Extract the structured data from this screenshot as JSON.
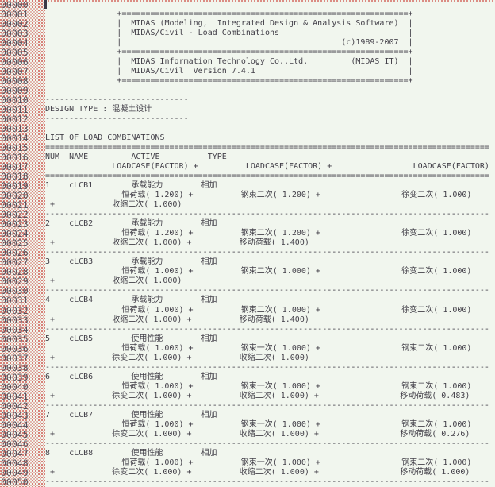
{
  "window": {
    "kind": "text-output-viewer",
    "cursor_line": "00000"
  },
  "colors": {
    "background": "#f1f6ee",
    "text": "#434049",
    "gutter_dots": "#ce4f47",
    "gutter_numbers": "#55515c",
    "caret": "#3a3947"
  },
  "header_box": {
    "product": "MIDAS (Modeling,  Integrated Design & Analysis Software)",
    "module": "MIDAS/Civil - Load Combinations",
    "copyright": "(c)1989-2007",
    "company": "MIDAS Information Technology Co.,Ltd.",
    "company_short": "(MIDAS IT)",
    "version": "MIDAS/Civil  Version 7.4.1"
  },
  "design_type_label": "DESIGN TYPE : 混凝土设计",
  "list_title": "LIST OF LOAD COMBINATIONS",
  "load_combinations_table": {
    "headers": [
      "NUM",
      "NAME",
      "ACTIVE",
      "TYPE",
      "LOADCASE(FACTOR)",
      "LOADCASE(FACTOR)",
      "LOADCASE(FACTOR)"
    ],
    "rows": [
      {
        "num": "1",
        "name": "cLCB1",
        "active": "承载能力",
        "type": "相加",
        "loadcases": [
          "恒荷载( 1.200)",
          "钢束二次( 1.200)",
          "徐变二次( 1.000)",
          "收缩二次( 1.000)"
        ]
      },
      {
        "num": "2",
        "name": "cLCB2",
        "active": "承载能力",
        "type": "相加",
        "loadcases": [
          "恒荷载( 1.200)",
          "钢束二次( 1.200)",
          "徐变二次( 1.000)",
          "收缩二次( 1.000)",
          "移动荷载( 1.400)"
        ]
      },
      {
        "num": "3",
        "name": "cLCB3",
        "active": "承载能力",
        "type": "相加",
        "loadcases": [
          "恒荷载( 1.000)",
          "钢束二次( 1.000)",
          "徐变二次( 1.000)",
          "收缩二次( 1.000)"
        ]
      },
      {
        "num": "4",
        "name": "cLCB4",
        "active": "承载能力",
        "type": "相加",
        "loadcases": [
          "恒荷载( 1.000)",
          "钢束二次( 1.000)",
          "徐变二次( 1.000)",
          "收缩二次( 1.000)",
          "移动荷载( 1.400)"
        ]
      },
      {
        "num": "5",
        "name": "cLCB5",
        "active": "使用性能",
        "type": "相加",
        "loadcases": [
          "恒荷载( 1.000)",
          "钢束一次( 1.000)",
          "钢束二次( 1.000)",
          "徐变二次( 1.000)",
          "收缩二次( 1.000)"
        ]
      },
      {
        "num": "6",
        "name": "cLCB6",
        "active": "使用性能",
        "type": "相加",
        "loadcases": [
          "恒荷载( 1.000)",
          "钢束一次( 1.000)",
          "钢束二次( 1.000)",
          "徐变二次( 1.000)",
          "收缩二次( 1.000)",
          "移动荷载( 0.483)"
        ]
      },
      {
        "num": "7",
        "name": "cLCB7",
        "active": "使用性能",
        "type": "相加",
        "loadcases": [
          "恒荷载( 1.000)",
          "钢束一次( 1.000)",
          "钢束二次( 1.000)",
          "徐变二次( 1.000)",
          "收缩二次( 1.000)",
          "移动荷载( 0.276)"
        ]
      },
      {
        "num": "8",
        "name": "cLCB8",
        "active": "使用性能",
        "type": "相加",
        "loadcases": [
          "恒荷载( 1.000)",
          "钢束一次( 1.000)",
          "钢束二次( 1.000)",
          "徐变二次( 1.000)",
          "收缩二次( 1.000)",
          "移动荷载( 1.000)"
        ]
      }
    ]
  },
  "gutter": {
    "numbers": [
      "00000",
      "00001",
      "00002",
      "00003",
      "00004",
      "00005",
      "00006",
      "00007",
      "00008",
      "00009",
      "00010",
      "00011",
      "00012",
      "00013",
      "00014",
      "00015",
      "00016",
      "00017",
      "00018",
      "00019",
      "00020",
      "00021",
      "00022",
      "00023",
      "00024",
      "00025",
      "00026",
      "00027",
      "00028",
      "00029",
      "00030",
      "00031",
      "00032",
      "00033",
      "00034",
      "00035",
      "00036",
      "00037",
      "00038",
      "00039",
      "00040",
      "00041",
      "00042",
      "00043",
      "00044",
      "00045",
      "00046",
      "00047",
      "00048",
      "00049",
      "00050"
    ]
  },
  "document": {
    "lines": [
      "",
      "               +============================================================+",
      "               |  MIDAS (Modeling,  Integrated Design & Analysis Software)  |",
      "               |  MIDAS/Civil - Load Combinations                           |",
      "               |                                              (c)1989-2007  |",
      "               +============================================================+",
      "               |  MIDAS Information Technology Co.,Ltd.         (MIDAS IT)  |",
      "               |  MIDAS/Civil  Version 7.4.1                                |",
      "               +============================================================+",
      "",
      "------------------------------",
      "DESIGN TYPE : 混凝土设计",
      "------------------------------",
      "",
      "LIST OF LOAD COMBINATIONS",
      "=============================================================================================",
      "NUM  NAME         ACTIVE          TYPE",
      "              LOADCASE(FACTOR) +          LOADCASE(FACTOR) +                 LOADCASE(FACTOR)",
      "=============================================================================================",
      "1    cLCB1        承载能力        相加",
      "                恒荷载( 1.200) +          钢束二次( 1.200) +                 徐变二次( 1.000)",
      " +            收缩二次( 1.000)",
      "---------------------------------------------------------------------------------------------",
      "2    cLCB2        承载能力        相加",
      "                恒荷载( 1.200) +          钢束二次( 1.200) +                 徐变二次( 1.000)",
      " +            收缩二次( 1.000) +          移动荷载( 1.400)",
      "---------------------------------------------------------------------------------------------",
      "3    cLCB3        承载能力        相加",
      "                恒荷载( 1.000) +          钢束二次( 1.000) +                 徐变二次( 1.000)",
      " +            收缩二次( 1.000)",
      "---------------------------------------------------------------------------------------------",
      "4    cLCB4        承载能力        相加",
      "                恒荷载( 1.000) +          钢束二次( 1.000) +                 徐变二次( 1.000)",
      " +            收缩二次( 1.000) +          移动荷载( 1.400)",
      "---------------------------------------------------------------------------------------------",
      "5    cLCB5        使用性能        相加",
      "                恒荷载( 1.000) +          钢束一次( 1.000) +                 钢束二次( 1.000)",
      " +            徐变二次( 1.000) +          收缩二次( 1.000)",
      "---------------------------------------------------------------------------------------------",
      "6    cLCB6        使用性能        相加",
      "                恒荷载( 1.000) +          钢束一次( 1.000) +                 钢束二次( 1.000)",
      " +            徐变二次( 1.000) +          收缩二次( 1.000) +                 移动荷载( 0.483)",
      "---------------------------------------------------------------------------------------------",
      "7    cLCB7        使用性能        相加",
      "                恒荷载( 1.000) +          钢束一次( 1.000) +                 钢束二次( 1.000)",
      " +            徐变二次( 1.000) +          收缩二次( 1.000) +                 移动荷载( 0.276)",
      "---------------------------------------------------------------------------------------------",
      "8    cLCB8        使用性能        相加",
      "                恒荷载( 1.000) +          钢束一次( 1.000) +                 钢束二次( 1.000)",
      " +            徐变二次( 1.000) +          收缩二次( 1.000) +                 移动荷载( 1.000)",
      "---------------------------------------------------------------------------------------------"
    ]
  }
}
